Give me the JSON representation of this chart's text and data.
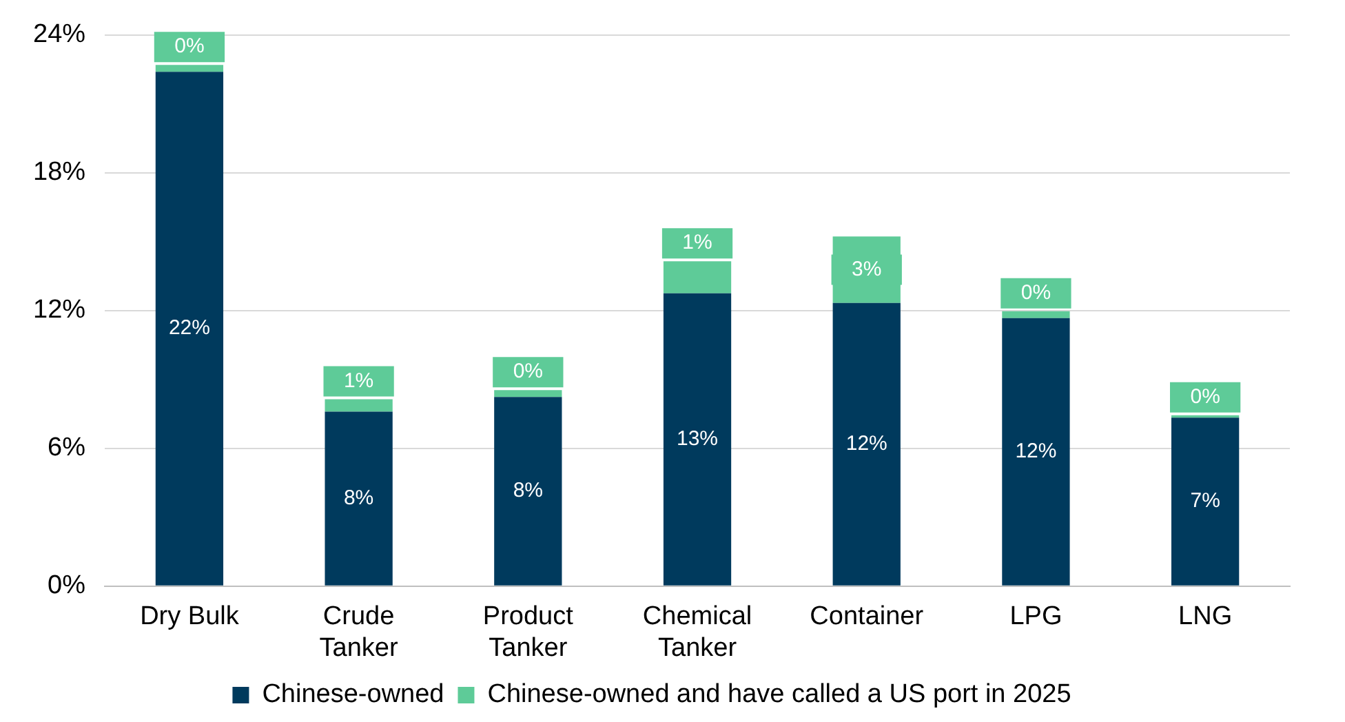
{
  "chart_data": {
    "type": "bar",
    "stacked": true,
    "categories": [
      "Dry Bulk",
      "Crude\nTanker",
      "Product\nTanker",
      "Chemical\nTanker",
      "Container",
      "LPG",
      "LNG"
    ],
    "series": [
      {
        "name": "Chinese-owned",
        "color": "#003a5d",
        "values": [
          22.4,
          7.6,
          8.24,
          12.75,
          12.33,
          11.67,
          7.34
        ],
        "value_labels": [
          "22%",
          "8%",
          "8%",
          "13%",
          "12%",
          "12%",
          "7%"
        ]
      },
      {
        "name": "Chinese-owned and have called a US port in 2025",
        "color": "#5ecb98",
        "values": [
          0.3,
          0.54,
          0.3,
          1.4,
          2.9,
          0.3,
          0.1
        ],
        "value_labels": [
          "0%",
          "1%",
          "0%",
          "1%",
          "3%",
          "0%",
          "0%"
        ]
      }
    ],
    "ylim": [
      0,
      24
    ],
    "yticks": [
      {
        "value": 0,
        "label": "0%"
      },
      {
        "value": 6,
        "label": "6%"
      },
      {
        "value": 12,
        "label": "12%"
      },
      {
        "value": 18,
        "label": "18%"
      },
      {
        "value": 24,
        "label": "24%"
      }
    ],
    "grid": "y",
    "legend": "bottom"
  }
}
